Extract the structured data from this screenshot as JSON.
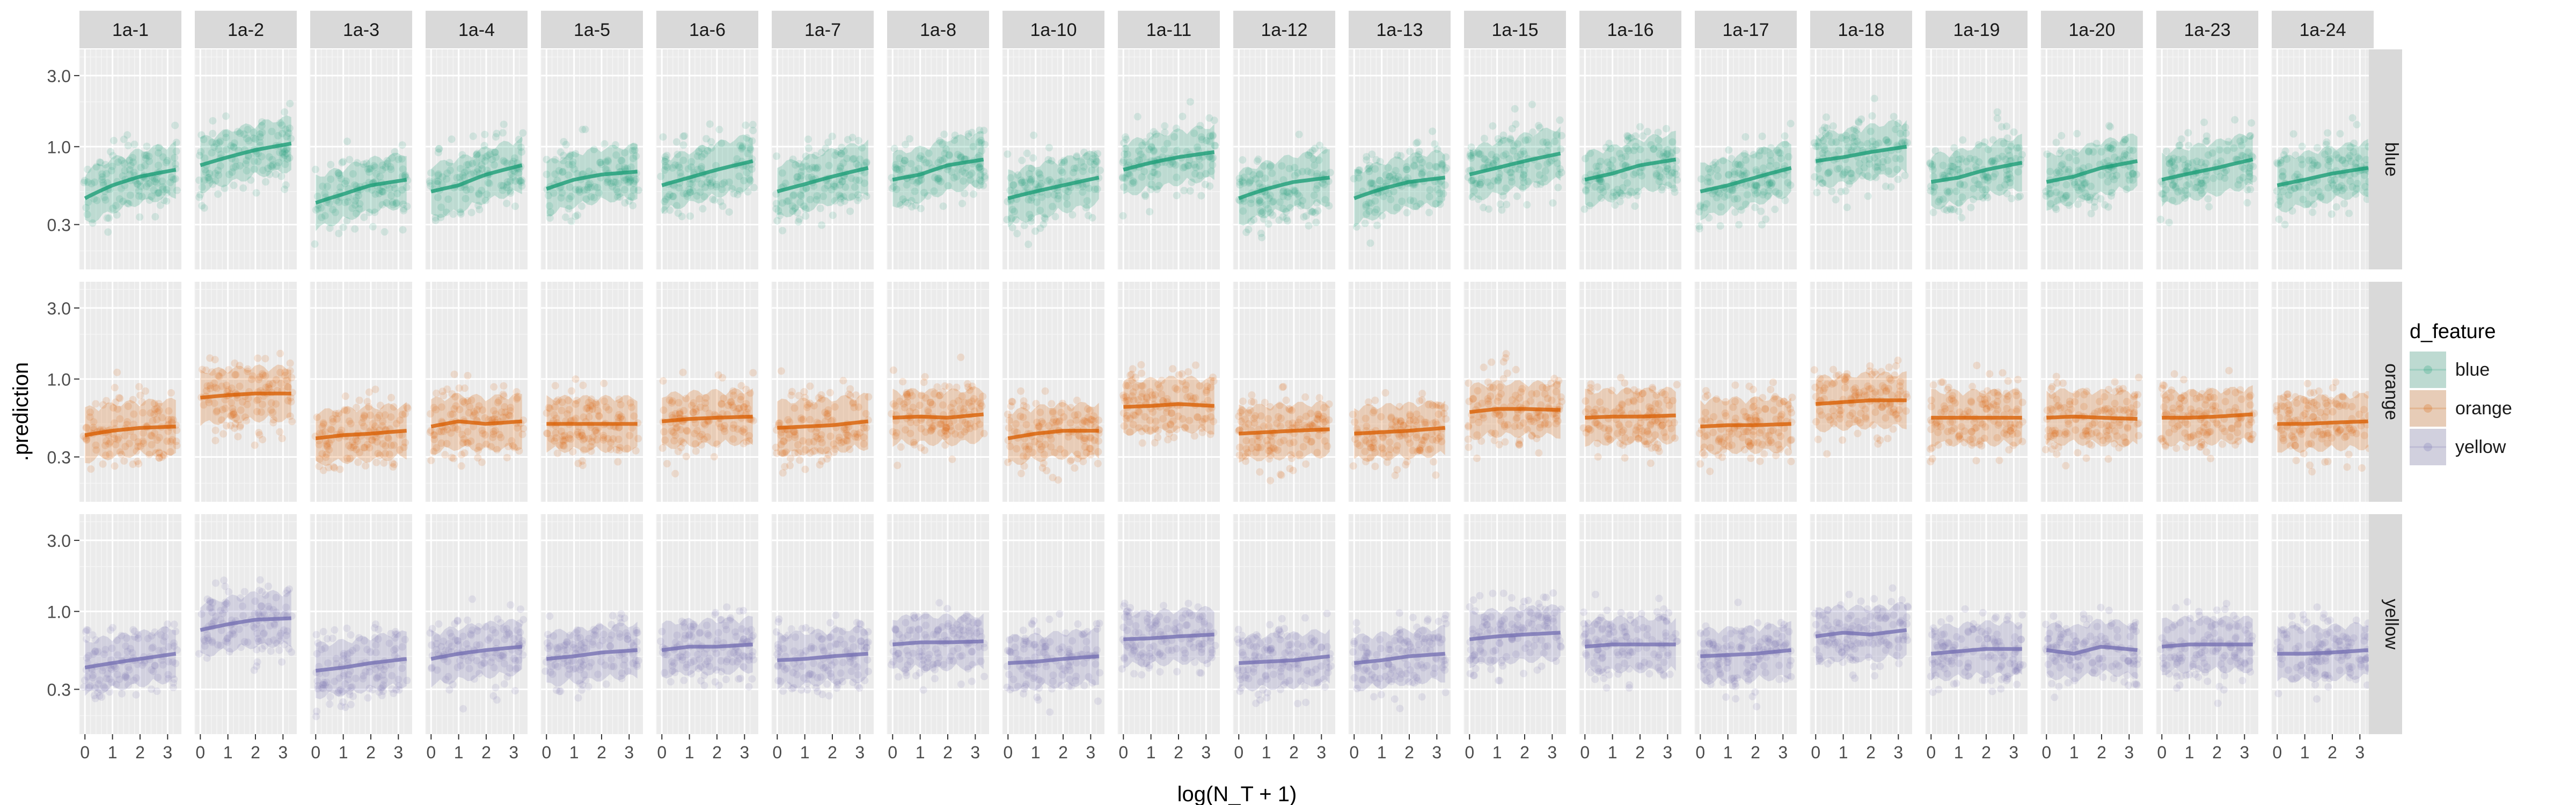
{
  "chart_data": {
    "type": "scatter",
    "title": "",
    "xlabel": "log(N_T + 1)",
    "ylabel": ".prediction",
    "x_ticks": [
      0,
      1,
      2,
      3
    ],
    "xlim": [
      -0.2,
      3.5
    ],
    "y_scale": "log",
    "y_ticks": [
      0.3,
      1.0,
      3.0
    ],
    "y_tick_labels": [
      "0.3",
      "1.0",
      "3.0"
    ],
    "ylim": [
      0.15,
      4.5
    ],
    "grid": true,
    "legend": {
      "title": "d_feature",
      "position": "right"
    },
    "facet_cols": [
      "1a-1",
      "1a-2",
      "1a-3",
      "1a-4",
      "1a-5",
      "1a-6",
      "1a-7",
      "1a-8",
      "1a-10",
      "1a-11",
      "1a-12",
      "1a-13",
      "1a-15",
      "1a-16",
      "1a-17",
      "1a-18",
      "1a-19",
      "1a-20",
      "1a-23",
      "1a-24"
    ],
    "facet_rows": [
      "blue",
      "orange",
      "yellow"
    ],
    "colors": {
      "blue": "#1b9e77",
      "orange": "#d95f02",
      "yellow": "#7570b3"
    },
    "trend_x": [
      0,
      1,
      2,
      3.3
    ],
    "series": [
      {
        "name": "blue",
        "trend": [
          [
            0.45,
            0.55,
            0.63,
            0.7
          ],
          [
            0.75,
            0.85,
            0.95,
            1.05
          ],
          [
            0.42,
            0.48,
            0.55,
            0.6
          ],
          [
            0.5,
            0.55,
            0.65,
            0.75
          ],
          [
            0.52,
            0.6,
            0.65,
            0.68
          ],
          [
            0.55,
            0.62,
            0.7,
            0.8
          ],
          [
            0.5,
            0.56,
            0.63,
            0.72
          ],
          [
            0.6,
            0.65,
            0.75,
            0.82
          ],
          [
            0.45,
            0.5,
            0.55,
            0.62
          ],
          [
            0.7,
            0.78,
            0.85,
            0.92
          ],
          [
            0.45,
            0.52,
            0.58,
            0.62
          ],
          [
            0.45,
            0.52,
            0.58,
            0.62
          ],
          [
            0.65,
            0.72,
            0.8,
            0.9
          ],
          [
            0.6,
            0.66,
            0.75,
            0.82
          ],
          [
            0.5,
            0.55,
            0.62,
            0.72
          ],
          [
            0.8,
            0.85,
            0.92,
            1.0
          ],
          [
            0.58,
            0.62,
            0.7,
            0.78
          ],
          [
            0.58,
            0.63,
            0.72,
            0.8
          ],
          [
            0.6,
            0.66,
            0.72,
            0.82
          ],
          [
            0.55,
            0.6,
            0.66,
            0.72
          ]
        ]
      },
      {
        "name": "orange",
        "trend": [
          [
            0.42,
            0.45,
            0.47,
            0.48
          ],
          [
            0.75,
            0.78,
            0.8,
            0.8
          ],
          [
            0.4,
            0.42,
            0.43,
            0.45
          ],
          [
            0.48,
            0.52,
            0.5,
            0.52
          ],
          [
            0.5,
            0.5,
            0.5,
            0.5
          ],
          [
            0.52,
            0.54,
            0.55,
            0.56
          ],
          [
            0.47,
            0.48,
            0.49,
            0.52
          ],
          [
            0.55,
            0.56,
            0.55,
            0.58
          ],
          [
            0.4,
            0.43,
            0.45,
            0.45
          ],
          [
            0.65,
            0.66,
            0.68,
            0.66
          ],
          [
            0.43,
            0.44,
            0.45,
            0.46
          ],
          [
            0.43,
            0.44,
            0.45,
            0.47
          ],
          [
            0.6,
            0.63,
            0.63,
            0.62
          ],
          [
            0.55,
            0.56,
            0.56,
            0.57
          ],
          [
            0.48,
            0.49,
            0.49,
            0.5
          ],
          [
            0.68,
            0.7,
            0.72,
            0.72
          ],
          [
            0.55,
            0.55,
            0.55,
            0.55
          ],
          [
            0.55,
            0.56,
            0.55,
            0.54
          ],
          [
            0.55,
            0.55,
            0.56,
            0.58
          ],
          [
            0.5,
            0.5,
            0.51,
            0.52
          ]
        ]
      },
      {
        "name": "yellow",
        "trend": [
          [
            0.42,
            0.45,
            0.48,
            0.52
          ],
          [
            0.75,
            0.82,
            0.88,
            0.9
          ],
          [
            0.4,
            0.42,
            0.45,
            0.48
          ],
          [
            0.48,
            0.52,
            0.55,
            0.58
          ],
          [
            0.48,
            0.5,
            0.53,
            0.55
          ],
          [
            0.55,
            0.58,
            0.58,
            0.6
          ],
          [
            0.47,
            0.48,
            0.5,
            0.52
          ],
          [
            0.6,
            0.62,
            0.62,
            0.63
          ],
          [
            0.45,
            0.46,
            0.48,
            0.5
          ],
          [
            0.65,
            0.66,
            0.68,
            0.7
          ],
          [
            0.45,
            0.46,
            0.47,
            0.5
          ],
          [
            0.45,
            0.47,
            0.5,
            0.52
          ],
          [
            0.65,
            0.68,
            0.7,
            0.72
          ],
          [
            0.58,
            0.6,
            0.6,
            0.6
          ],
          [
            0.5,
            0.51,
            0.52,
            0.55
          ],
          [
            0.68,
            0.72,
            0.7,
            0.75
          ],
          [
            0.52,
            0.54,
            0.56,
            0.56
          ],
          [
            0.55,
            0.52,
            0.58,
            0.55
          ],
          [
            0.58,
            0.6,
            0.6,
            0.6
          ],
          [
            0.52,
            0.52,
            0.53,
            0.55
          ]
        ]
      }
    ]
  }
}
